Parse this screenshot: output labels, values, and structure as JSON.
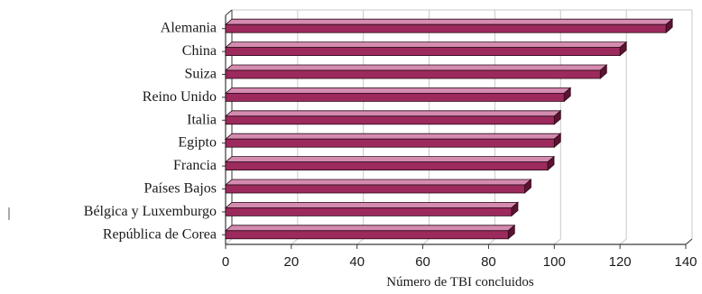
{
  "chart_data": {
    "type": "bar",
    "orientation": "horizontal",
    "style": "3d",
    "categories": [
      "Alemania",
      "China",
      "Suiza",
      "Reino Unido",
      "Italia",
      "Egipto",
      "Francia",
      "Países Bajos",
      "Bélgica y Luxemburgo",
      "República de Corea"
    ],
    "values": [
      134,
      120,
      114,
      103,
      100,
      100,
      98,
      91,
      87,
      86
    ],
    "xlabel": "Número de TBI concluidos",
    "ylabel": "",
    "xlim": [
      0,
      140
    ],
    "xticks": [
      0,
      20,
      40,
      60,
      80,
      100,
      120,
      140
    ],
    "grid": "vertical",
    "colors": {
      "bar_front": "#9c2a5c",
      "bar_top": "#d58bb0",
      "bar_side": "#5e1232",
      "bar_outline": "#2a0a18",
      "grid": "#c8c8c8",
      "axis": "#3a3a3a"
    }
  }
}
